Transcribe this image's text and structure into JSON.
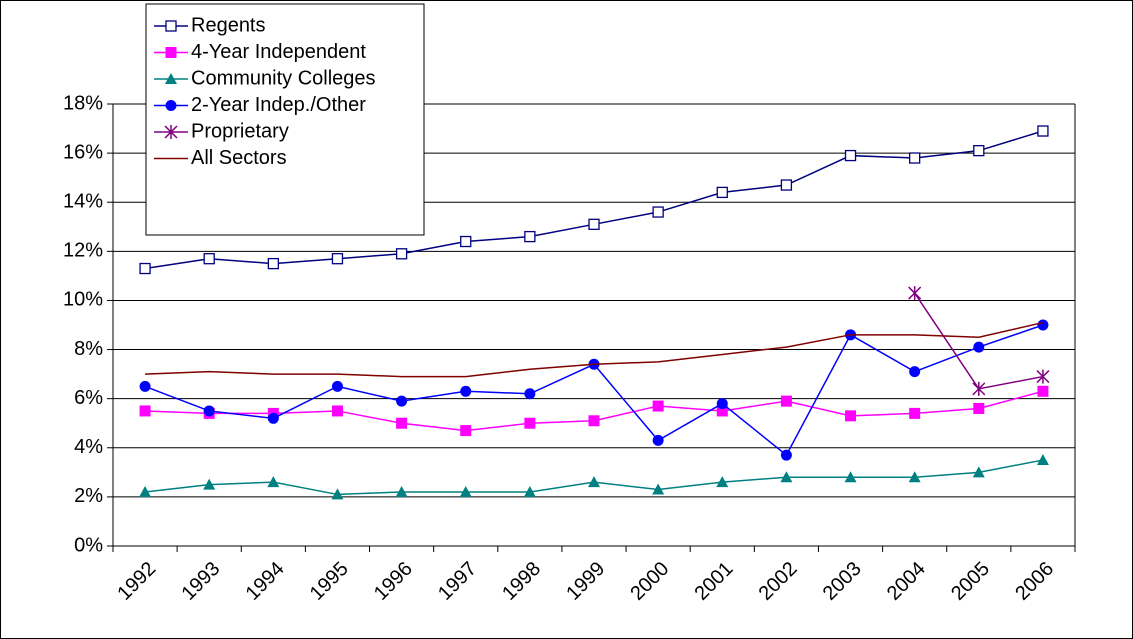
{
  "chart_data": {
    "type": "line",
    "categories": [
      "1992",
      "1993",
      "1994",
      "1995",
      "1996",
      "1997",
      "1998",
      "1999",
      "2000",
      "2001",
      "2002",
      "2003",
      "2004",
      "2005",
      "2006"
    ],
    "ylim": [
      0,
      18
    ],
    "yticks": [
      {
        "value": 0,
        "label": "0%"
      },
      {
        "value": 2,
        "label": "2%"
      },
      {
        "value": 4,
        "label": "4%"
      },
      {
        "value": 6,
        "label": "6%"
      },
      {
        "value": 8,
        "label": "8%"
      },
      {
        "value": 10,
        "label": "10%"
      },
      {
        "value": 12,
        "label": "12%"
      },
      {
        "value": 14,
        "label": "14%"
      },
      {
        "value": 16,
        "label": "16%"
      },
      {
        "value": 18,
        "label": "18%"
      }
    ],
    "grid": true,
    "legend": "upper left",
    "series": [
      {
        "name": "Regents",
        "color": "#000080",
        "marker": "open-square",
        "values": [
          11.3,
          11.7,
          11.5,
          11.7,
          11.9,
          12.4,
          12.6,
          13.1,
          13.6,
          14.4,
          14.7,
          15.9,
          15.8,
          16.1,
          16.9
        ]
      },
      {
        "name": "4-Year Independent",
        "color": "#ff00ff",
        "marker": "square",
        "values": [
          5.5,
          5.4,
          5.4,
          5.5,
          5.0,
          4.7,
          5.0,
          5.1,
          5.7,
          5.5,
          5.9,
          5.3,
          5.4,
          5.6,
          6.3
        ]
      },
      {
        "name": "Community Colleges",
        "color": "#008080",
        "marker": "triangle",
        "values": [
          2.2,
          2.5,
          2.6,
          2.1,
          2.2,
          2.2,
          2.2,
          2.6,
          2.3,
          2.6,
          2.8,
          2.8,
          2.8,
          3.0,
          3.5
        ]
      },
      {
        "name": "2-Year Indep./Other",
        "color": "#0000ff",
        "marker": "circle",
        "values": [
          6.5,
          5.5,
          5.2,
          6.5,
          5.9,
          6.3,
          6.2,
          7.4,
          4.3,
          5.8,
          3.7,
          8.6,
          7.1,
          8.1,
          9.0
        ]
      },
      {
        "name": "Proprietary",
        "color": "#800080",
        "marker": "star",
        "values": [
          null,
          null,
          null,
          null,
          null,
          null,
          null,
          null,
          null,
          null,
          null,
          null,
          10.3,
          6.4,
          6.9
        ]
      },
      {
        "name": "All Sectors",
        "color": "#800000",
        "marker": "none",
        "values": [
          7.0,
          7.1,
          7.0,
          7.0,
          6.9,
          6.9,
          7.2,
          7.4,
          7.5,
          7.8,
          8.1,
          8.6,
          8.6,
          8.5,
          9.1
        ]
      }
    ]
  }
}
